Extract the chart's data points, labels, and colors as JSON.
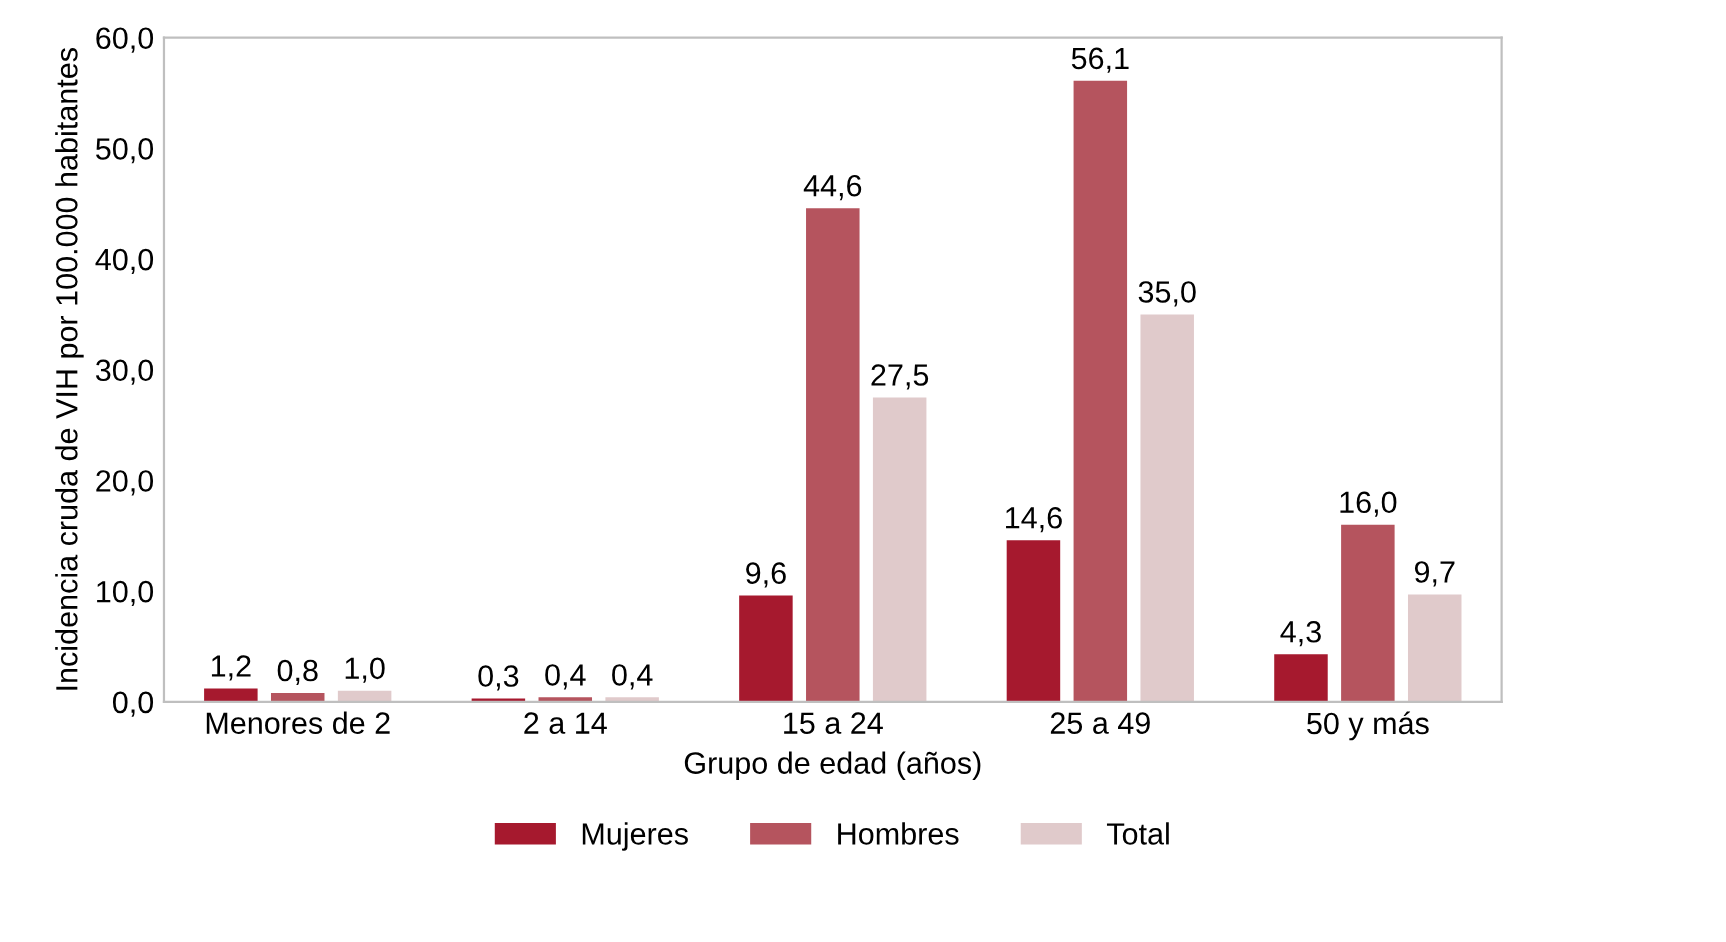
{
  "chart_data": {
    "type": "bar",
    "xlabel": "Grupo de edad (años)",
    "ylabel": "Incidencia cruda de VIH por 100.000 habitantes",
    "categories": [
      "Menores de 2",
      "2 a 14",
      "15 a 24",
      "25 a 49",
      "50 y más"
    ],
    "series": [
      {
        "name": "Mujeres",
        "color": "#a6192e",
        "values": [
          1.2,
          0.3,
          9.6,
          14.6,
          4.3
        ],
        "value_labels": [
          "1,2",
          "0,3",
          "9,6",
          "14,6",
          "4,3"
        ]
      },
      {
        "name": "Hombres",
        "color": "#b5545e",
        "values": [
          0.8,
          0.4,
          44.6,
          56.1,
          16.0
        ],
        "value_labels": [
          "0,8",
          "0,4",
          "44,6",
          "56,1",
          "16,0"
        ]
      },
      {
        "name": "Total",
        "color": "#e0cacb",
        "values": [
          1.0,
          0.4,
          27.5,
          35.0,
          9.7
        ],
        "value_labels": [
          "1,0",
          "0,4",
          "27,5",
          "35,0",
          "9,7"
        ]
      }
    ],
    "ylim": [
      0,
      60
    ],
    "yticks": [
      {
        "value": 0,
        "label": "0,0"
      },
      {
        "value": 10,
        "label": "10,0"
      },
      {
        "value": 20,
        "label": "20,0"
      },
      {
        "value": 30,
        "label": "30,0"
      },
      {
        "value": 40,
        "label": "40,0"
      },
      {
        "value": 50,
        "label": "50,0"
      },
      {
        "value": 60,
        "label": "60,0"
      }
    ],
    "legend": "bottom",
    "grid": false
  }
}
